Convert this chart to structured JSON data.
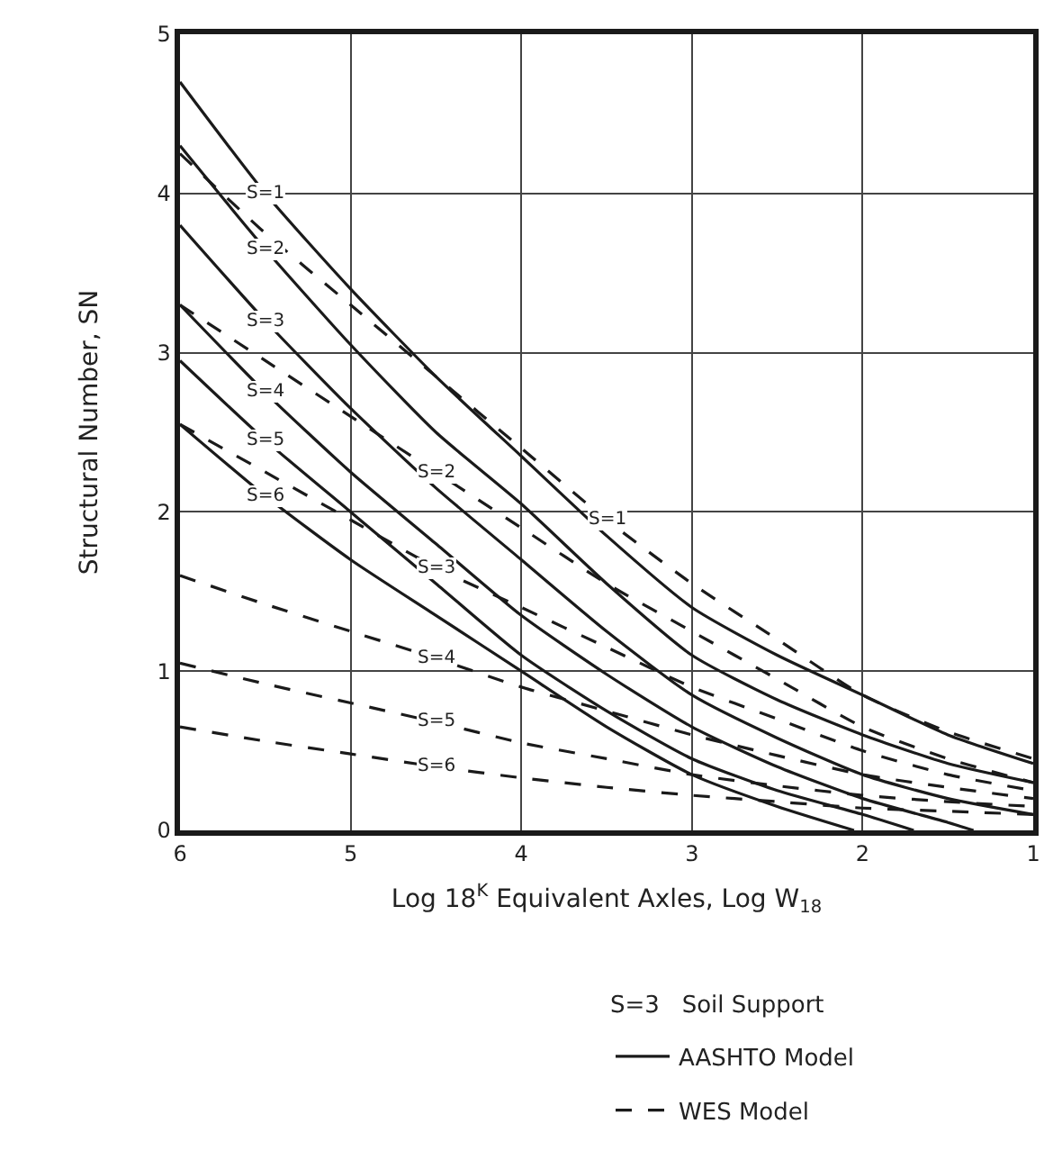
{
  "chart_data": {
    "type": "line",
    "xlabel": "Log 18$^{K}$ Equivalent Axles, Log W$_{18}$",
    "ylabel": "Structural Number, SN",
    "x": [
      6,
      5.5,
      5,
      4.5,
      4,
      3.5,
      3,
      2.5,
      2,
      1.5,
      1
    ],
    "xlim": [
      6,
      1
    ],
    "xticks": [
      6,
      5,
      4,
      3,
      2,
      1
    ],
    "ylim": [
      0,
      5
    ],
    "yticks": [
      0,
      1,
      2,
      3,
      4,
      5
    ],
    "grid": true,
    "legend": "bottom",
    "marker": "none",
    "series": [
      {
        "name": "AASHTO Model",
        "color": "#1a1a1a",
        "line_style": "solid",
        "values": [
          4.7,
          4.0,
          3.4,
          2.85,
          2.35,
          1.85,
          1.4,
          1.1,
          0.85,
          0.6,
          0.42
        ]
      },
      {
        "color": "#1a1a1a",
        "line_style": "solid",
        "values": [
          4.3,
          3.65,
          3.05,
          2.5,
          2.05,
          1.55,
          1.1,
          0.82,
          0.6,
          0.42,
          0.3
        ]
      },
      {
        "color": "#1a1a1a",
        "line_style": "solid",
        "values": [
          3.8,
          3.2,
          2.65,
          2.15,
          1.7,
          1.25,
          0.85,
          0.58,
          0.35,
          0.2,
          0.1
        ]
      },
      {
        "color": "#1a1a1a",
        "line_style": "solid",
        "x": [
          6,
          5.5,
          5,
          4.5,
          4,
          3.5,
          3,
          2.5,
          2,
          1.5,
          1.35
        ],
        "values": [
          3.3,
          2.75,
          2.25,
          1.8,
          1.35,
          0.98,
          0.65,
          0.4,
          0.2,
          0.05,
          0
        ]
      },
      {
        "color": "#1a1a1a",
        "line_style": "solid",
        "x": [
          6,
          5.5,
          5,
          4.5,
          4,
          3.5,
          3,
          2.5,
          2,
          1.7
        ],
        "values": [
          2.95,
          2.45,
          2.0,
          1.55,
          1.1,
          0.75,
          0.45,
          0.25,
          0.1,
          0
        ]
      },
      {
        "color": "#1a1a1a",
        "line_style": "solid",
        "x": [
          6,
          5.5,
          5,
          4.5,
          4,
          3.5,
          3,
          2.5,
          2.05
        ],
        "values": [
          2.55,
          2.1,
          1.7,
          1.35,
          1.0,
          0.65,
          0.35,
          0.15,
          0
        ]
      },
      {
        "name": "WES Model",
        "color": "#1a1a1a",
        "line_style": "dashed",
        "values": [
          4.25,
          3.75,
          3.3,
          2.85,
          2.4,
          1.95,
          1.55,
          1.2,
          0.85,
          0.62,
          0.45
        ]
      },
      {
        "color": "#1a1a1a",
        "line_style": "dashed",
        "values": [
          3.3,
          2.95,
          2.6,
          2.25,
          1.9,
          1.55,
          1.25,
          0.95,
          0.65,
          0.45,
          0.3
        ]
      },
      {
        "color": "#1a1a1a",
        "line_style": "dashed",
        "values": [
          2.55,
          2.25,
          1.95,
          1.65,
          1.4,
          1.15,
          0.9,
          0.7,
          0.5,
          0.35,
          0.25
        ]
      },
      {
        "color": "#1a1a1a",
        "line_style": "dashed",
        "values": [
          1.6,
          1.42,
          1.25,
          1.08,
          0.9,
          0.75,
          0.6,
          0.47,
          0.35,
          0.27,
          0.2
        ]
      },
      {
        "color": "#1a1a1a",
        "line_style": "dashed",
        "values": [
          1.05,
          0.92,
          0.8,
          0.68,
          0.55,
          0.45,
          0.35,
          0.28,
          0.22,
          0.18,
          0.15
        ]
      },
      {
        "color": "#1a1a1a",
        "line_style": "dashed",
        "values": [
          0.65,
          0.56,
          0.48,
          0.4,
          0.33,
          0.27,
          0.22,
          0.18,
          0.14,
          0.12,
          0.1
        ]
      }
    ],
    "annotations": [
      {
        "text": "S=1",
        "x": 5.5,
        "y": 4.0
      },
      {
        "text": "S=2",
        "x": 5.5,
        "y": 3.65
      },
      {
        "text": "S=3",
        "x": 5.5,
        "y": 3.2
      },
      {
        "text": "S=4",
        "x": 5.5,
        "y": 2.75
      },
      {
        "text": "S=5",
        "x": 5.5,
        "y": 2.45
      },
      {
        "text": "S=6",
        "x": 5.5,
        "y": 2.1
      },
      {
        "text": "S=1",
        "x": 3.5,
        "y": 1.95
      },
      {
        "text": "S=2",
        "x": 4.5,
        "y": 2.25
      },
      {
        "text": "S=3",
        "x": 4.5,
        "y": 1.65
      },
      {
        "text": "S=4",
        "x": 4.5,
        "y": 1.08
      },
      {
        "text": "S=5",
        "x": 4.5,
        "y": 0.68
      },
      {
        "text": "S=6",
        "x": 4.5,
        "y": 0.4
      },
      "S=3   Soil Support"
    ]
  }
}
